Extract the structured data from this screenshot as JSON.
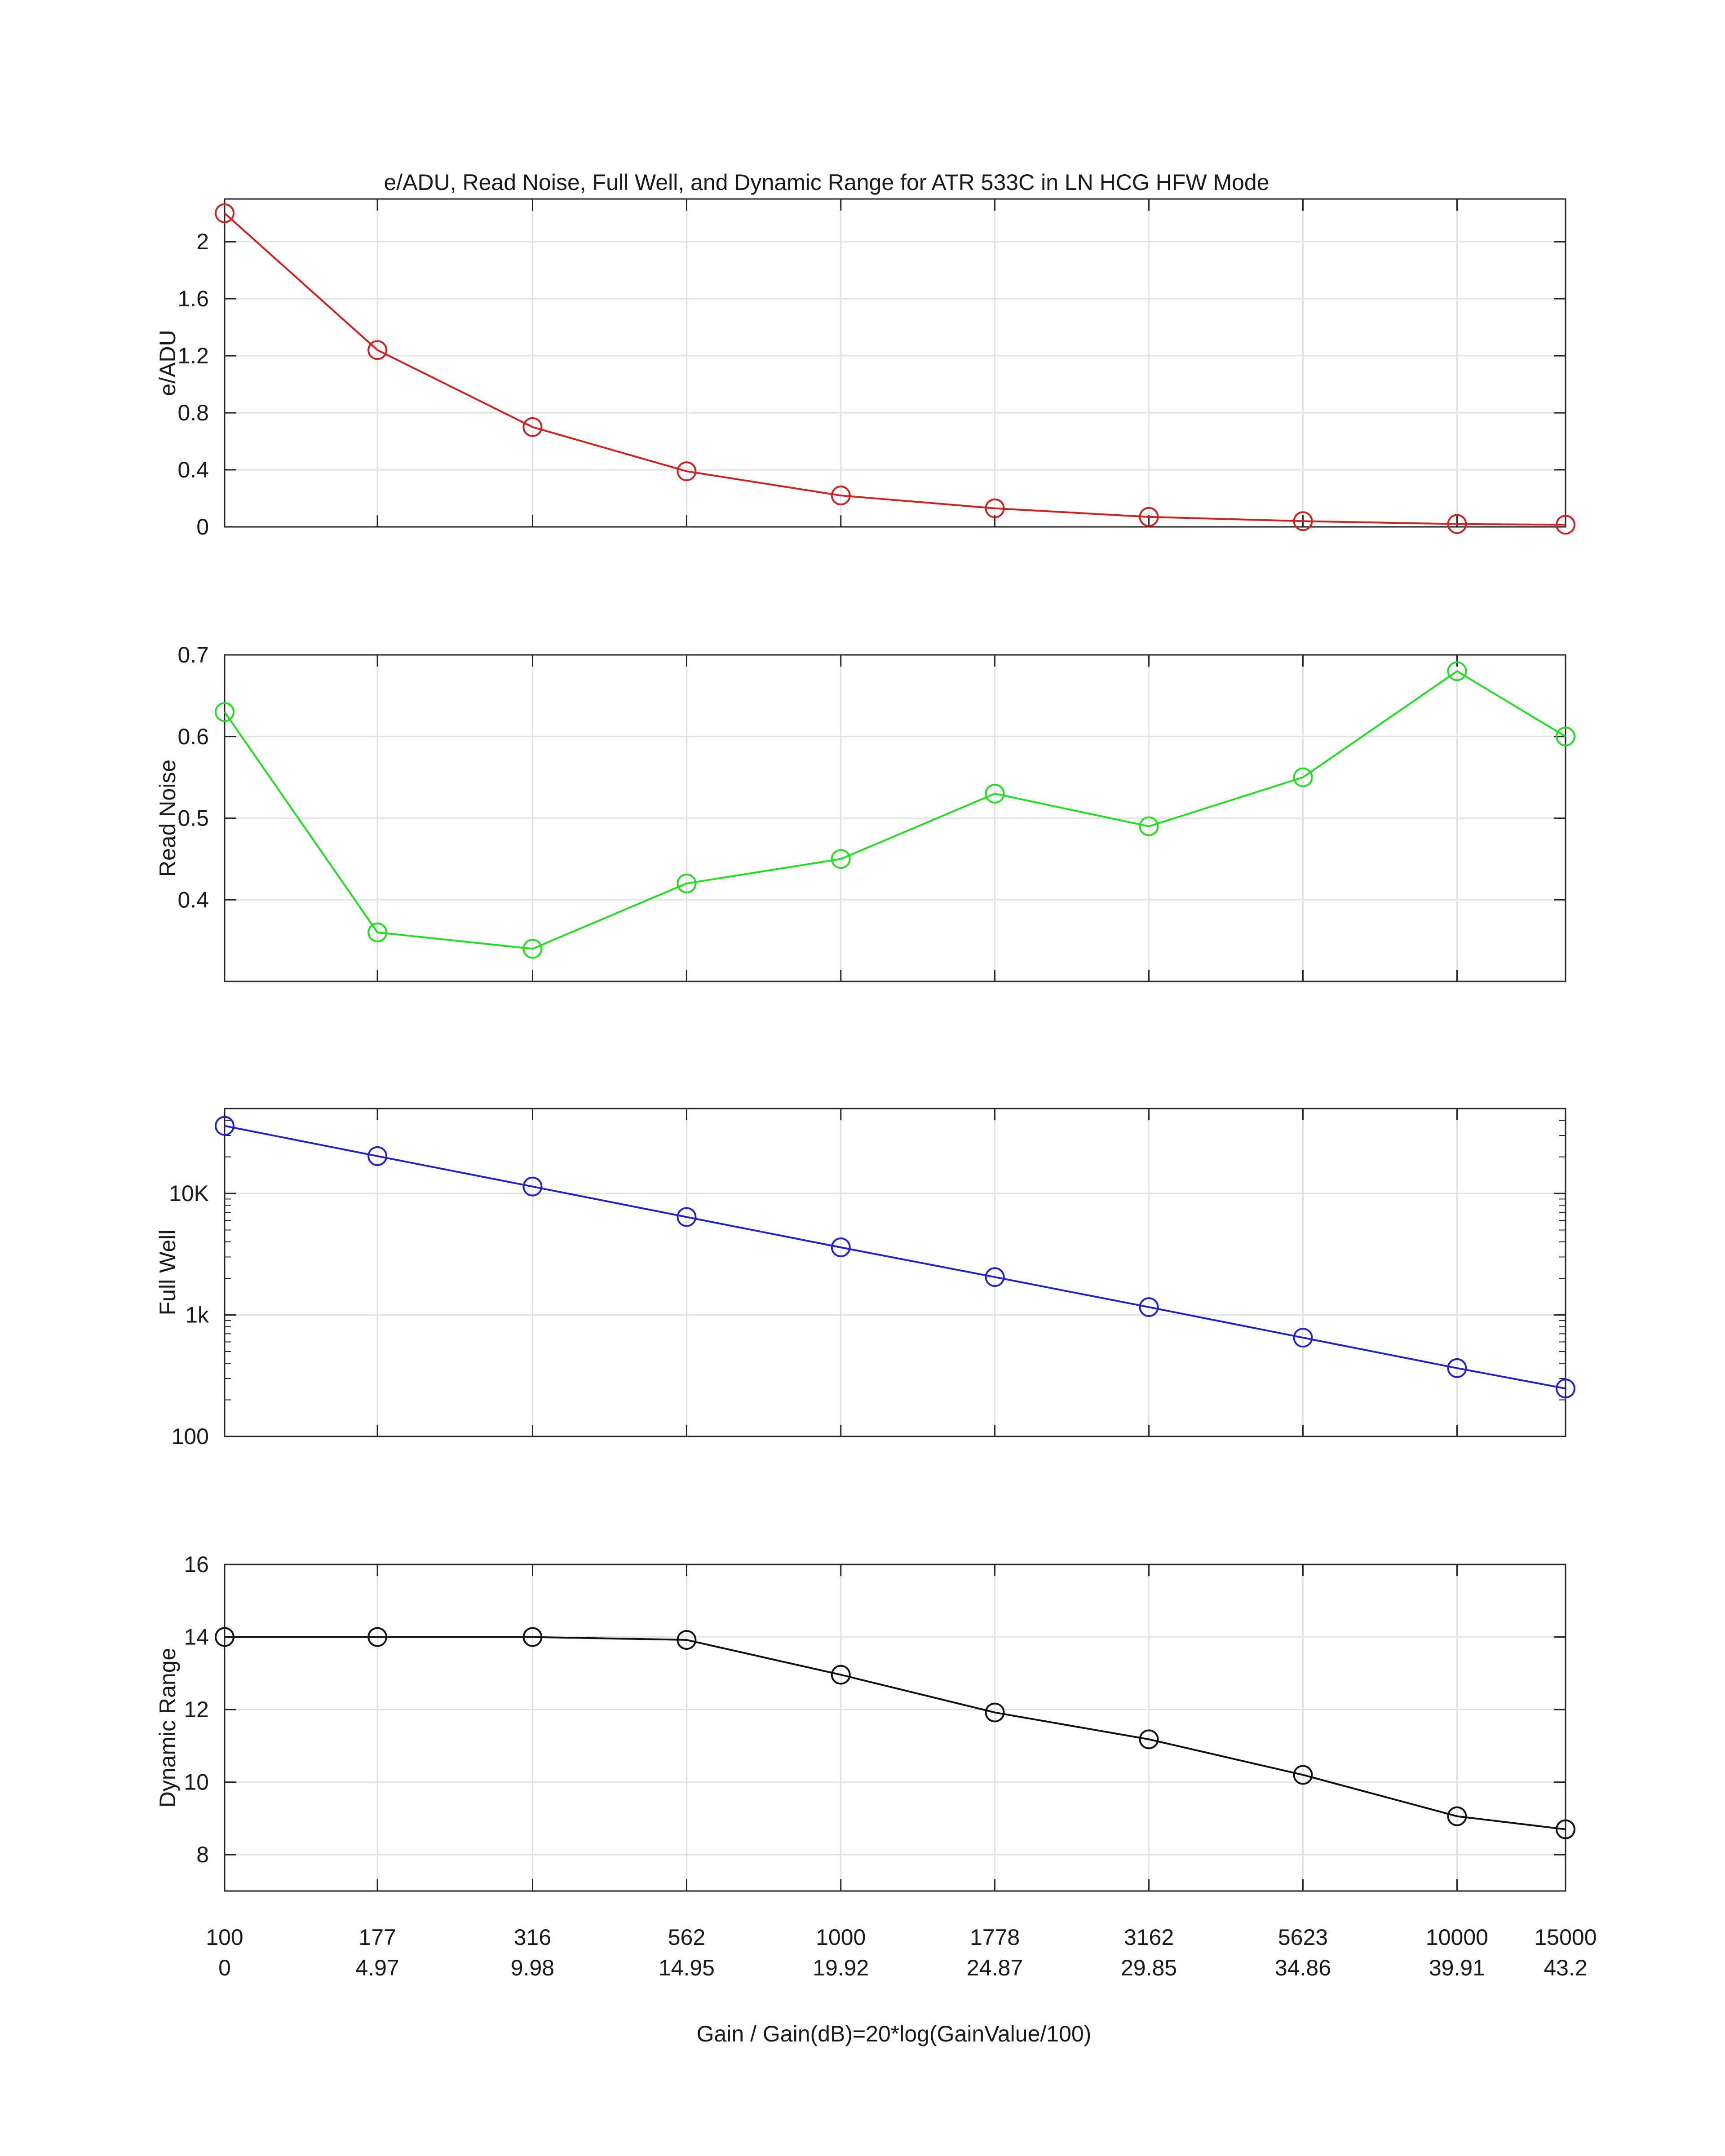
{
  "figure": {
    "title": "e/ADU, Read Noise, Full Well, and Dynamic Range for ATR 533C  in LN HCG HFW Mode",
    "xlabel": "Gain / Gain(dB)=20*log(GainValue/100)",
    "x_tick_labels": [
      "100",
      "177",
      "316",
      "562",
      "1000",
      "1778",
      "3162",
      "5623",
      "10000",
      "15000"
    ],
    "x_tick_labels_db": [
      "0",
      "4.97",
      "9.98",
      "14.95",
      "19.92",
      "24.87",
      "29.85",
      "34.86",
      "39.91",
      "43.2"
    ],
    "grid": true
  },
  "chart_data": [
    {
      "type": "line",
      "ylabel": "e/ADU",
      "x": [
        100,
        177,
        316,
        562,
        1000,
        1778,
        3162,
        5623,
        10000,
        15000
      ],
      "values": [
        2.2,
        1.24,
        0.7,
        0.39,
        0.22,
        0.13,
        0.07,
        0.04,
        0.02,
        0.015
      ],
      "ylim": [
        0,
        2.3
      ],
      "yticks": [
        0,
        0.4,
        0.8,
        1.2,
        1.6,
        2
      ],
      "ytick_labels": [
        "0",
        "0.4",
        "0.8",
        "1.2",
        "1.6",
        "2"
      ],
      "yscale": "linear",
      "color": "#cc2222",
      "marker": "circle-open"
    },
    {
      "type": "line",
      "ylabel": "Read Noise",
      "x": [
        100,
        177,
        316,
        562,
        1000,
        1778,
        3162,
        5623,
        10000,
        15000
      ],
      "values": [
        0.63,
        0.36,
        0.34,
        0.42,
        0.45,
        0.53,
        0.49,
        0.55,
        0.68,
        0.6
      ],
      "ylim": [
        0.3,
        0.7
      ],
      "yticks": [
        0.4,
        0.5,
        0.6,
        0.7
      ],
      "ytick_labels": [
        "0.4",
        "0.5",
        "0.6",
        "0.7"
      ],
      "yscale": "linear",
      "color": "#22dd22",
      "marker": "circle-open"
    },
    {
      "type": "line",
      "ylabel": "Full Well",
      "x": [
        100,
        177,
        316,
        562,
        1000,
        1778,
        3162,
        5623,
        10000,
        15000
      ],
      "values": [
        36000,
        20300,
        11400,
        6400,
        3600,
        2050,
        1160,
        650,
        365,
        248
      ],
      "ylim": [
        100,
        50000
      ],
      "yticks": [
        100,
        1000,
        10000
      ],
      "ytick_labels": [
        "100",
        "1k",
        "10K"
      ],
      "yscale": "log",
      "color": "#2222cc",
      "marker": "circle-open"
    },
    {
      "type": "line",
      "ylabel": "Dynamic Range",
      "x": [
        100,
        177,
        316,
        562,
        1000,
        1778,
        3162,
        5623,
        10000,
        15000
      ],
      "values": [
        14.0,
        14.0,
        14.0,
        13.92,
        12.96,
        11.92,
        11.18,
        10.2,
        9.06,
        8.7
      ],
      "ylim": [
        7,
        16
      ],
      "yticks": [
        8,
        10,
        12,
        14,
        16
      ],
      "ytick_labels": [
        "8",
        "10",
        "12",
        "14",
        "16"
      ],
      "yscale": "linear",
      "color": "#111111",
      "marker": "circle-open"
    }
  ]
}
